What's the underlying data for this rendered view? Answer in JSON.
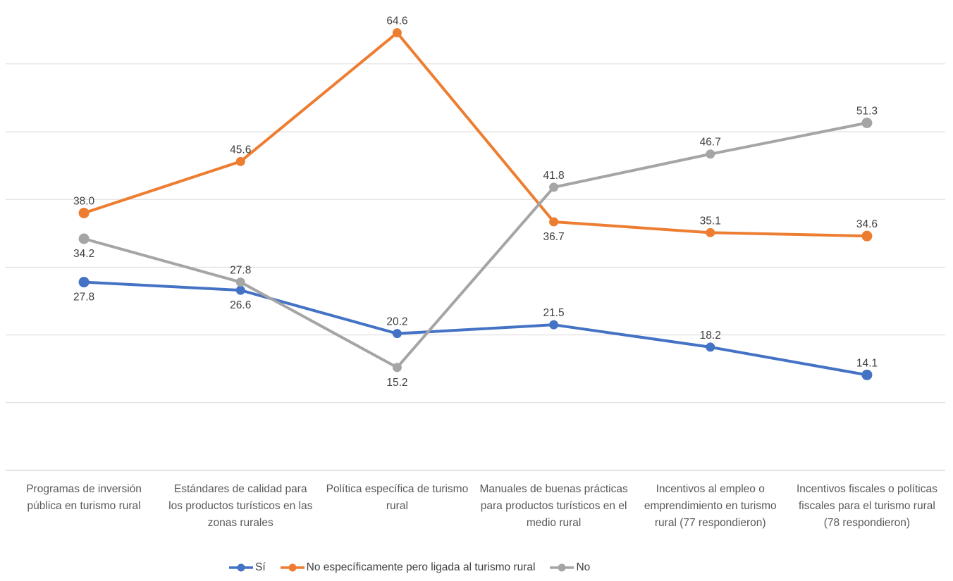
{
  "chart_data": {
    "type": "line",
    "categories": [
      "Programas de inversión pública en turismo rural",
      "Estándares de calidad para los productos turísticos en las zonas rurales",
      "Política específica de turismo rural",
      "Manuales de buenas prácticas para productos turísticos en el medio rural",
      "Incentivos al empleo o emprendimiento en turismo rural (77 respondieron)",
      "Incentivos fiscales o políticas fiscales para el turismo rural (78 respondieron)"
    ],
    "series": [
      {
        "name": "Sí",
        "color": "#4472C4",
        "values": [
          27.8,
          26.6,
          20.2,
          21.5,
          18.2,
          14.1
        ],
        "label_pos": [
          "below",
          "below",
          "above",
          "above",
          "above",
          "above"
        ]
      },
      {
        "name": "No específicamente pero ligada al turismo rural",
        "color": "#ED7D31",
        "values": [
          38.0,
          45.6,
          64.6,
          36.7,
          35.1,
          34.6
        ],
        "label_pos": [
          "above",
          "above",
          "above",
          "below",
          "above",
          "above"
        ]
      },
      {
        "name": "No",
        "color": "#A5A5A5",
        "values": [
          34.2,
          27.8,
          15.2,
          41.8,
          46.7,
          51.3
        ],
        "label_pos": [
          "below",
          "above",
          "below",
          "above",
          "above",
          "above"
        ]
      }
    ],
    "title": "",
    "xlabel": "",
    "ylabel": "",
    "ylim": [
      0,
      70
    ],
    "grid_step": 10,
    "grid": true,
    "legend_position": "bottom",
    "data_labels_decimals": 1
  },
  "colors": {
    "gridline": "#d9d9d9",
    "axis_line": "#d0cece",
    "data_label": "#3f3f3f",
    "category_label": "#595959",
    "legend_label": "#404040"
  }
}
